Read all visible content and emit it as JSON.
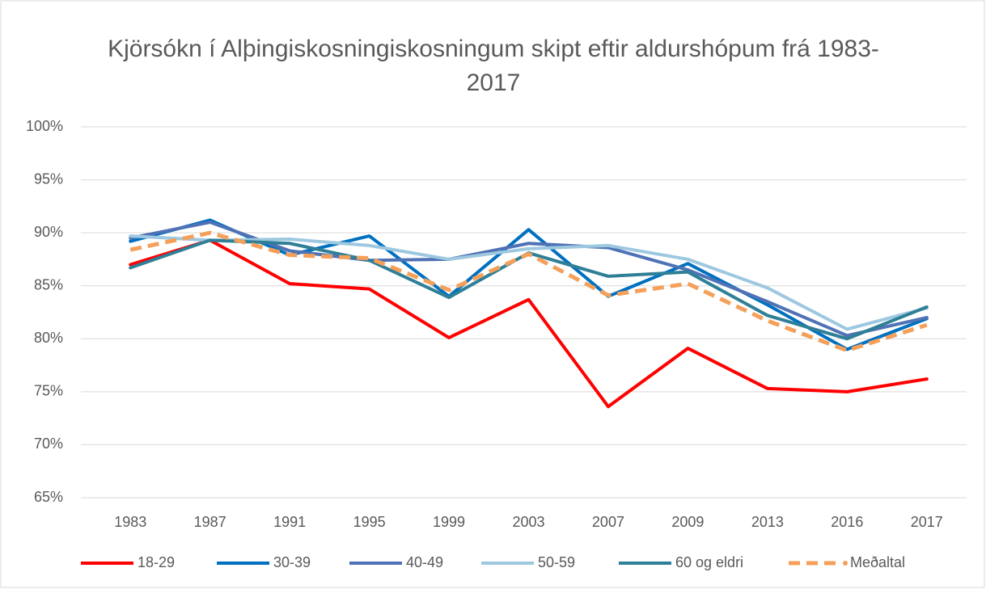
{
  "chart_data": {
    "type": "line",
    "title": "Kjörsókn í Alþingiskosningiskosningum skipt eftir aldurshópum frá 1983-2017",
    "categories": [
      "1983",
      "1987",
      "1991",
      "1995",
      "1999",
      "2003",
      "2007",
      "2009",
      "2013",
      "2016",
      "2017"
    ],
    "series": [
      {
        "name": "18-29",
        "color": "#ff0000",
        "dashed": false,
        "values": [
          87.0,
          89.3,
          85.2,
          84.7,
          80.1,
          83.7,
          73.6,
          79.1,
          75.3,
          75.0,
          76.2
        ]
      },
      {
        "name": "30-39",
        "color": "#0070c0",
        "dashed": false,
        "values": [
          89.2,
          91.2,
          87.9,
          89.7,
          84.0,
          90.3,
          84.0,
          87.1,
          83.2,
          79.0,
          81.9
        ]
      },
      {
        "name": "40-49",
        "color": "#4f72b5",
        "dashed": false,
        "values": [
          89.5,
          91.0,
          88.3,
          87.4,
          87.5,
          89.0,
          88.6,
          86.5,
          83.5,
          80.3,
          82.0
        ]
      },
      {
        "name": "50-59",
        "color": "#9dc8e0",
        "dashed": false,
        "values": [
          89.7,
          89.3,
          89.4,
          88.8,
          87.5,
          88.5,
          88.8,
          87.5,
          84.8,
          80.9,
          82.9
        ]
      },
      {
        "name": "60 og eldri",
        "color": "#2e7f97",
        "dashed": false,
        "values": [
          86.7,
          89.3,
          89.0,
          87.4,
          83.9,
          88.1,
          85.9,
          86.3,
          82.2,
          80.0,
          83.0
        ]
      },
      {
        "name": "Meðaltal",
        "color": "#f4a05a",
        "dashed": true,
        "values": [
          88.4,
          90.0,
          87.9,
          87.6,
          84.6,
          88.0,
          84.1,
          85.2,
          81.7,
          78.9,
          81.3
        ]
      }
    ],
    "ylim": [
      65,
      100
    ],
    "yticks": [
      {
        "value": 65,
        "label": "65%"
      },
      {
        "value": 70,
        "label": "70%"
      },
      {
        "value": 75,
        "label": "75%"
      },
      {
        "value": 80,
        "label": "80%"
      },
      {
        "value": 85,
        "label": "85%"
      },
      {
        "value": 90,
        "label": "90%"
      },
      {
        "value": 95,
        "label": "95%"
      },
      {
        "value": 100,
        "label": "100%"
      }
    ],
    "grid": true,
    "legend": "bottom"
  }
}
